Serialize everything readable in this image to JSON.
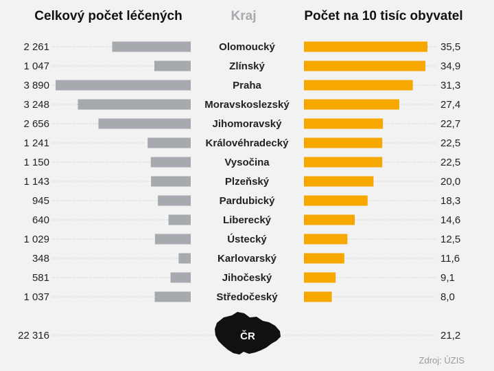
{
  "headers": {
    "left": "Celkový počet léčených",
    "center": "Kraj",
    "right": "Počet na 10 tisíc obyvatel"
  },
  "source": "Zdroj: ÚZIS",
  "colors": {
    "left_bar": "#a6a9ad",
    "right_bar": "#f6a800",
    "center_header": "#a6a9ad",
    "map": "#111111"
  },
  "chart_data": {
    "type": "bar",
    "layout": "back-to-back horizontal bar",
    "categories": [
      "Olomoucký",
      "Zlínský",
      "Praha",
      "Moravskoslezský",
      "Jihomoravský",
      "Královéhradecký",
      "Vysočina",
      "Plzeňský",
      "Pardubický",
      "Liberecký",
      "Ústecký",
      "Karlovarský",
      "Jihočeský",
      "Středočeský"
    ],
    "series": [
      {
        "name": "Celkový počet léčených",
        "values": [
          2261,
          1047,
          3890,
          3248,
          2656,
          1241,
          1150,
          1143,
          945,
          640,
          1029,
          348,
          581,
          1037
        ],
        "labels": [
          "2 261",
          "1 047",
          "3 890",
          "3 248",
          "2 656",
          "1 241",
          "1 150",
          "1 143",
          "945",
          "640",
          "1 029",
          "348",
          "581",
          "1 037"
        ]
      },
      {
        "name": "Počet na 10 tisíc obyvatel",
        "values": [
          35.5,
          34.9,
          31.3,
          27.4,
          22.7,
          22.5,
          22.5,
          20.0,
          18.3,
          14.6,
          12.5,
          11.6,
          9.1,
          8.0
        ],
        "labels": [
          "35,5",
          "34,9",
          "31,3",
          "27,4",
          "22,7",
          "22,5",
          "22,5",
          "20,0",
          "18,3",
          "14,6",
          "12,5",
          "11,6",
          "9,1",
          "8,0"
        ]
      }
    ],
    "total": {
      "label": "ČR",
      "left_value": 22316,
      "left_label": "22 316",
      "right_value": 21.2,
      "right_label": "21,2"
    }
  }
}
